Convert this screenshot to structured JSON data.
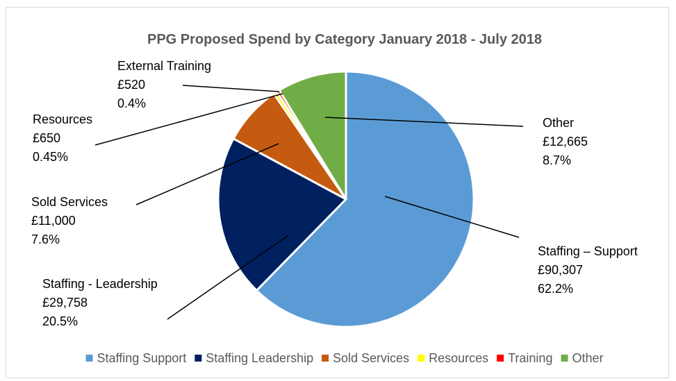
{
  "chart_data": {
    "type": "pie",
    "title": "PPG Proposed Spend by Category January 2018 - July 2018",
    "slices": [
      {
        "name": "Staffing – Support",
        "value": 90307,
        "value_label": "£90,307",
        "percent_label": "62.2%",
        "color": "#5b9bd5"
      },
      {
        "name": "Staffing - Leadership",
        "value": 29758,
        "value_label": "£29,758",
        "percent_label": "20.5%",
        "color": "#002060"
      },
      {
        "name": "Sold Services",
        "value": 11000,
        "value_label": "£11,000",
        "percent_label": "7.6%",
        "color": "#c55a11"
      },
      {
        "name": "Resources",
        "value": 650,
        "value_label": "£650",
        "percent_label": "0.45%",
        "color": "#ffff00"
      },
      {
        "name": "External Training",
        "value": 520,
        "value_label": "£520",
        "percent_label": "0.4%",
        "color": "#ff0000"
      },
      {
        "name": "Other",
        "value": 12665,
        "value_label": "£12,665",
        "percent_label": "8.7%",
        "color": "#70ad47"
      }
    ],
    "legend": [
      {
        "label": "Staffing Support",
        "color": "#5b9bd5"
      },
      {
        "label": "Staffing Leadership",
        "color": "#002060"
      },
      {
        "label": "Sold Services",
        "color": "#c55a11"
      },
      {
        "label": "Resources",
        "color": "#ffff00"
      },
      {
        "label": "Training",
        "color": "#ff0000"
      },
      {
        "label": "Other",
        "color": "#70ad47"
      }
    ],
    "legend_position": "bottom"
  }
}
